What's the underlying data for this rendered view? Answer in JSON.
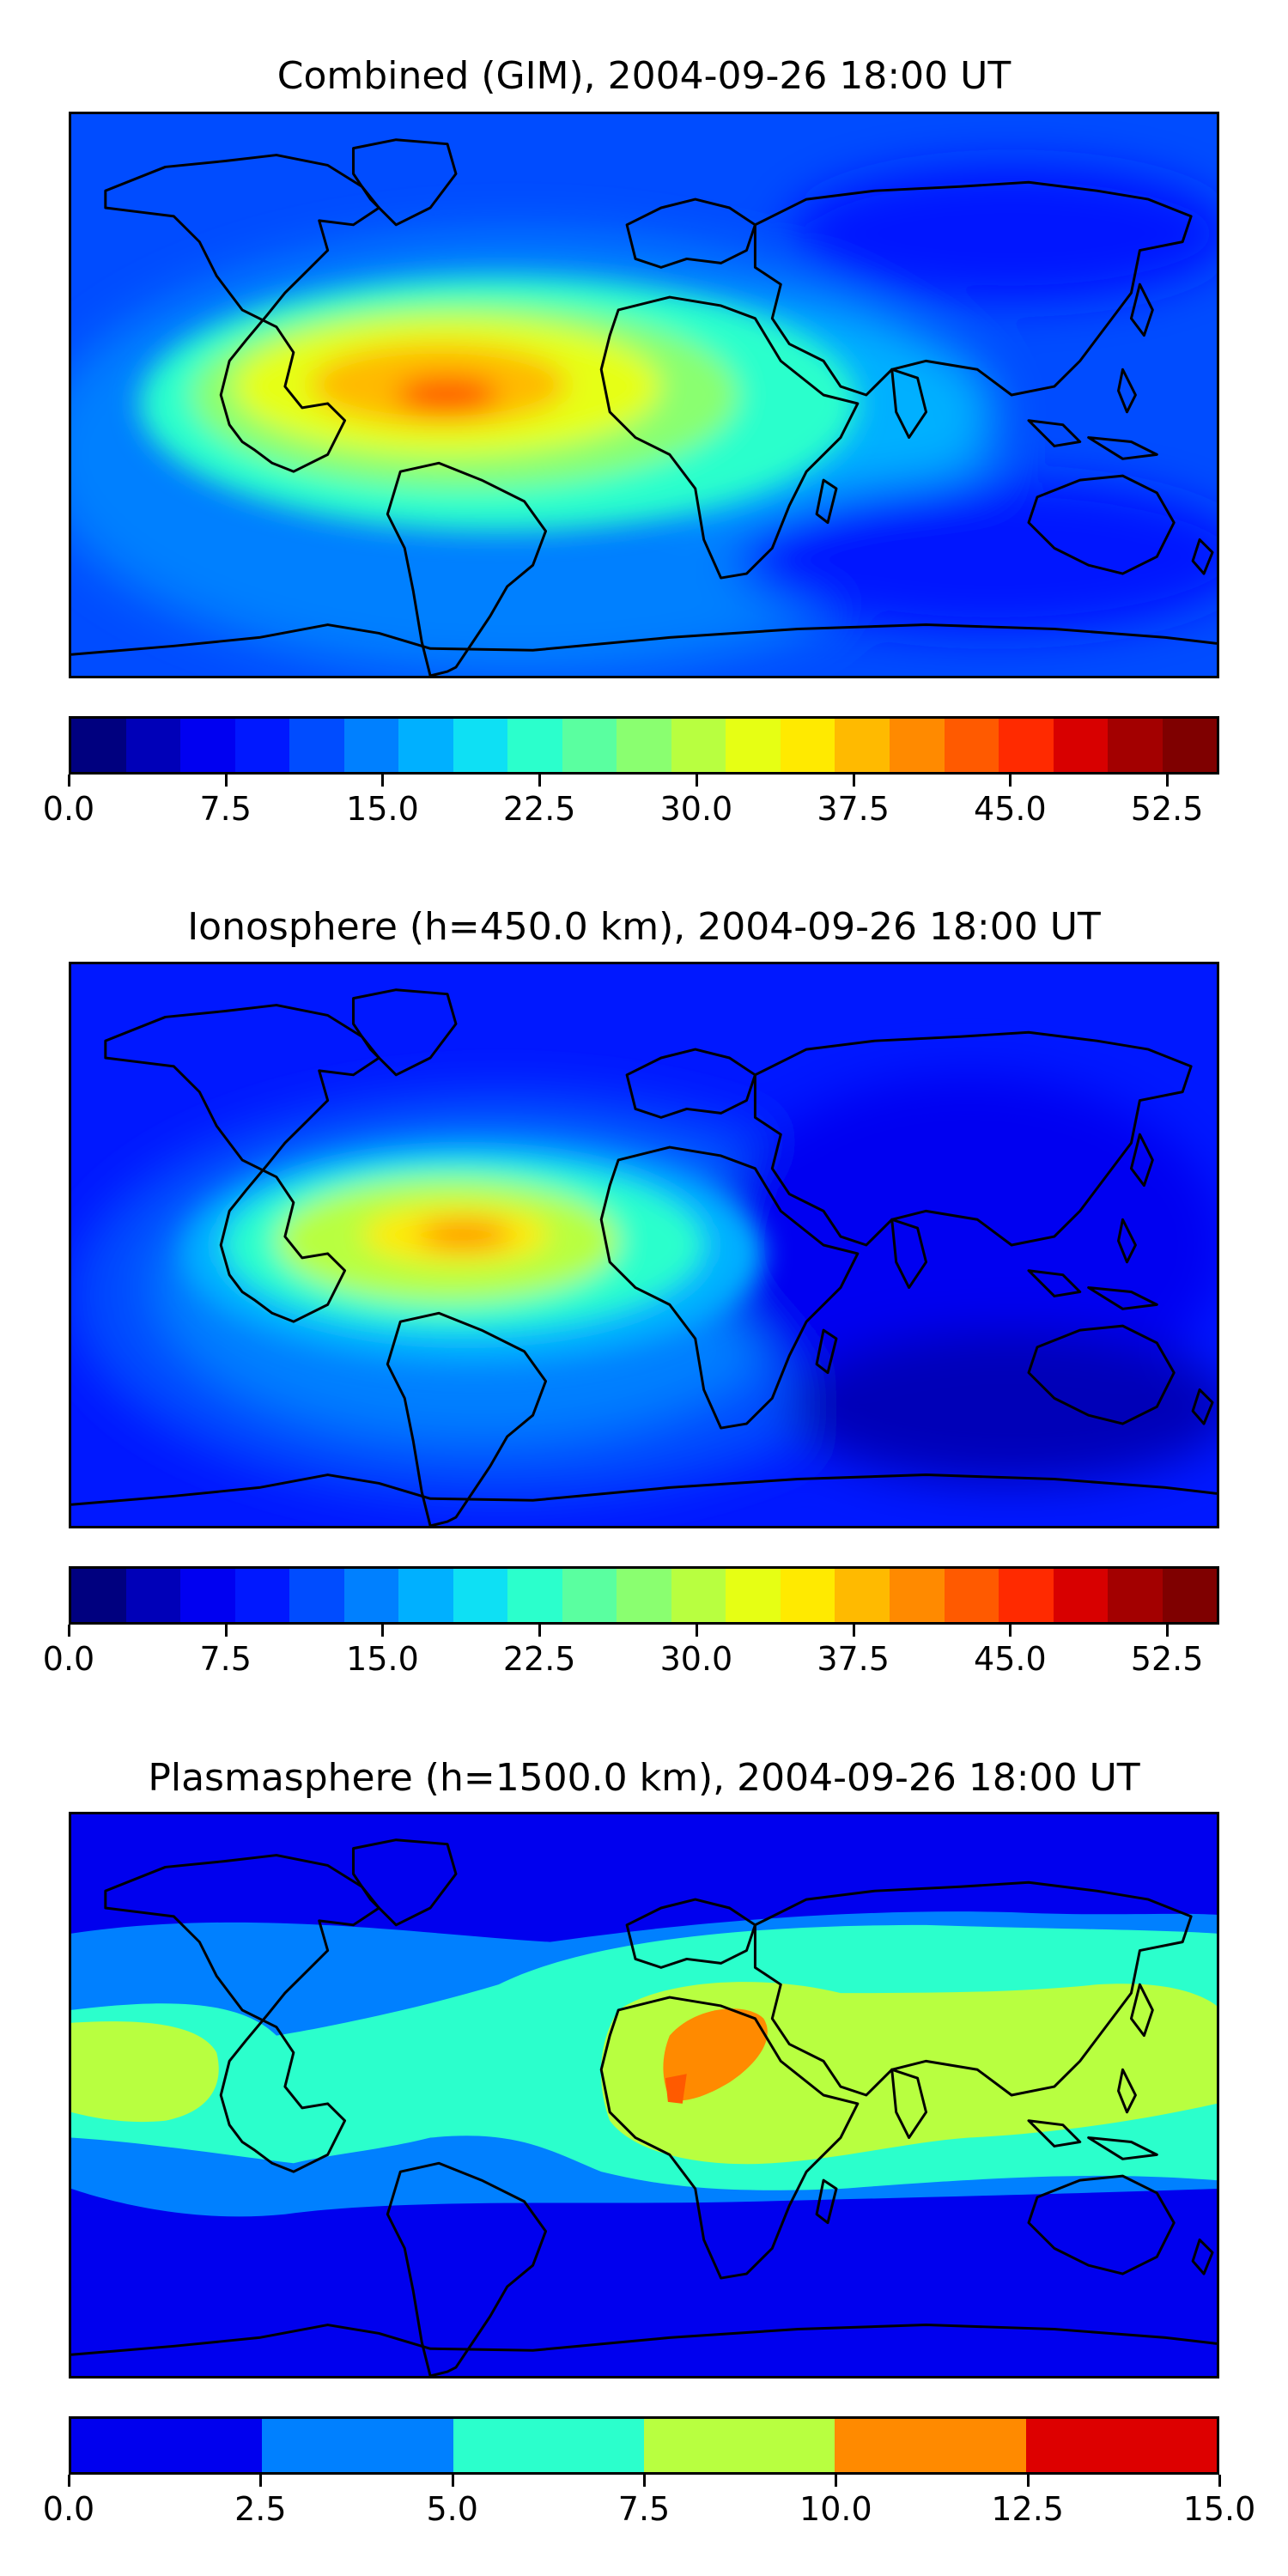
{
  "panels": [
    {
      "title": "Combined (GIM), 2004-09-26 18:00 UT",
      "colorbar": {
        "colors": [
          "#00007f",
          "#0000b8",
          "#0000f1",
          "#0018ff",
          "#004cff",
          "#0080ff",
          "#00b0ff",
          "#0ee0f4",
          "#2bffcc",
          "#5affa0",
          "#8aff70",
          "#b8ff40",
          "#e6ff14",
          "#ffea00",
          "#ffba00",
          "#ff8a00",
          "#ff5a00",
          "#ff2a00",
          "#d80000",
          "#a30000",
          "#7f0000"
        ],
        "ticks": [
          "0.0",
          "7.5",
          "15.0",
          "22.5",
          "30.0",
          "37.5",
          "45.0",
          "52.5"
        ],
        "min": 0,
        "max": 55,
        "step": 2.5
      }
    },
    {
      "title": "Ionosphere  (h=450.0 km), 2004-09-26 18:00 UT",
      "colorbar": {
        "colors": [
          "#00007f",
          "#0000b8",
          "#0000f1",
          "#0018ff",
          "#004cff",
          "#0080ff",
          "#00b0ff",
          "#0ee0f4",
          "#2bffcc",
          "#5affa0",
          "#8aff70",
          "#b8ff40",
          "#e6ff14",
          "#ffea00",
          "#ffba00",
          "#ff8a00",
          "#ff5a00",
          "#ff2a00",
          "#d80000",
          "#a30000",
          "#7f0000"
        ],
        "ticks": [
          "0.0",
          "7.5",
          "15.0",
          "22.5",
          "30.0",
          "37.5",
          "45.0",
          "52.5"
        ],
        "min": 0,
        "max": 55,
        "step": 2.5
      }
    },
    {
      "title": "Plasmasphere (h=1500.0 km), 2004-09-26 18:00 UT",
      "colorbar": {
        "colors": [
          "#0000ee",
          "#0080ff",
          "#2bffcc",
          "#b8ff40",
          "#ff8a00",
          "#dd0000"
        ],
        "ticks": [
          "0.0",
          "2.5",
          "5.0",
          "7.5",
          "10.0",
          "12.5",
          "15.0"
        ],
        "min": 0,
        "max": 15,
        "step": 2.5
      }
    }
  ],
  "chart_data": [
    {
      "type": "heatmap",
      "title": "Combined (GIM), 2004-09-26 18:00 UT",
      "colorbar_range": [
        0,
        55
      ],
      "colorbar_ticks": [
        0.0,
        7.5,
        15.0,
        22.5,
        30.0,
        37.5,
        45.0,
        52.5
      ],
      "levels_step": 2.5,
      "regions": [
        {
          "location": "equatorial South America",
          "value_range": [
            42.5,
            47.5
          ]
        },
        {
          "location": "equatorial Atlantic",
          "value_range": [
            30,
            40
          ]
        },
        {
          "location": "Africa",
          "value_range": [
            17.5,
            25
          ]
        },
        {
          "location": "Asia and Pacific",
          "value_range": [
            5,
            12.5
          ]
        },
        {
          "location": "polar regions",
          "value_range": [
            5,
            10
          ]
        }
      ]
    },
    {
      "type": "heatmap",
      "title": "Ionosphere  (h=450.0 km), 2004-09-26 18:00 UT",
      "colorbar_range": [
        0,
        55
      ],
      "colorbar_ticks": [
        0.0,
        7.5,
        15.0,
        22.5,
        30.0,
        37.5,
        45.0,
        52.5
      ],
      "levels_step": 2.5,
      "regions": [
        {
          "location": "equatorial South America",
          "value_range": [
            37.5,
            42.5
          ]
        },
        {
          "location": "equatorial Atlantic",
          "value_range": [
            25,
            35
          ]
        },
        {
          "location": "Africa",
          "value_range": [
            10,
            17.5
          ]
        },
        {
          "location": "Asia and Pacific",
          "value_range": [
            2.5,
            7.5
          ]
        },
        {
          "location": "polar regions",
          "value_range": [
            5,
            10
          ]
        }
      ]
    },
    {
      "type": "heatmap",
      "title": "Plasmasphere (h=1500.0 km), 2004-09-26 18:00 UT",
      "colorbar_range": [
        0,
        15
      ],
      "colorbar_ticks": [
        0.0,
        2.5,
        5.0,
        7.5,
        10.0,
        12.5,
        15.0
      ],
      "levels_step": 2.5,
      "regions": [
        {
          "location": "central Africa",
          "value_range": [
            10,
            12.5
          ]
        },
        {
          "location": "Africa to Asia band",
          "value_range": [
            7.5,
            10
          ]
        },
        {
          "location": "eastern Pacific",
          "value_range": [
            7.5,
            10
          ]
        },
        {
          "location": "Americas",
          "value_range": [
            2.5,
            5
          ]
        },
        {
          "location": "high latitudes",
          "value_range": [
            0,
            2.5
          ]
        }
      ]
    }
  ]
}
